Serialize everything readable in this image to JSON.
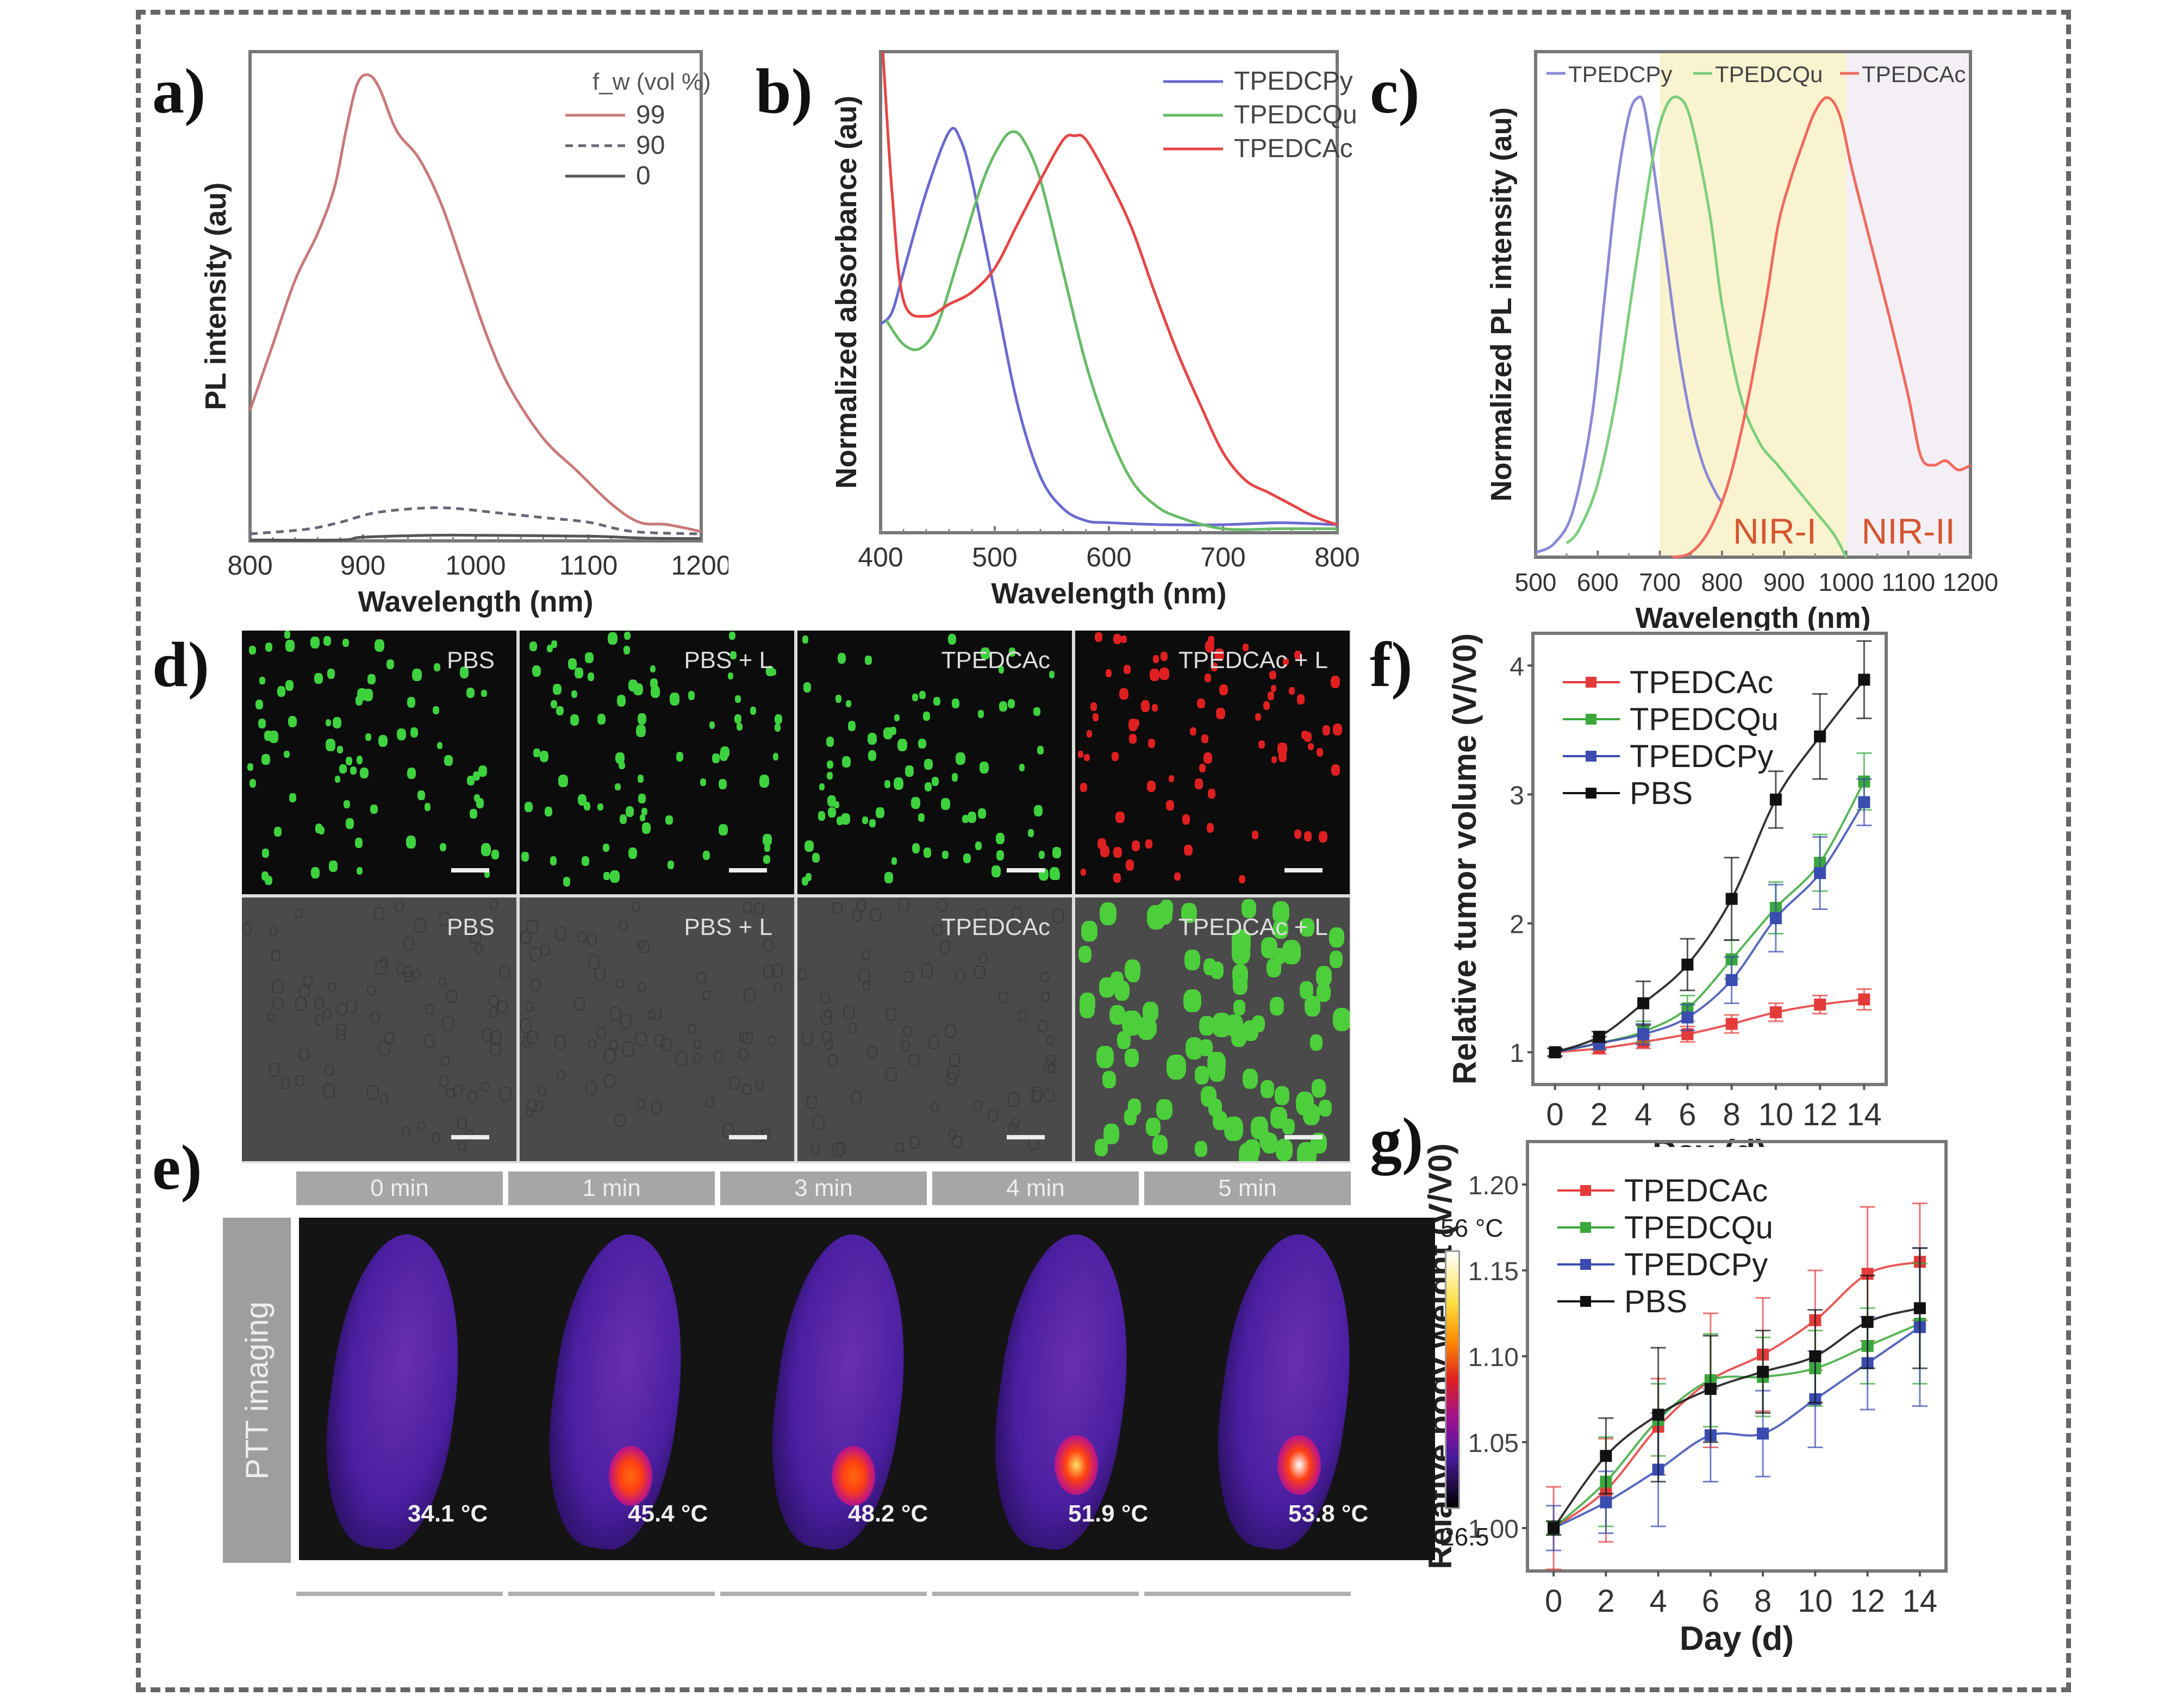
{
  "panels": {
    "a": {
      "label": "a)"
    },
    "b": {
      "label": "b)"
    },
    "c": {
      "label": "c)"
    },
    "d": {
      "label": "d)"
    },
    "e": {
      "label": "e)"
    },
    "f": {
      "label": "f)"
    },
    "g": {
      "label": "g)"
    }
  },
  "chart_data": [
    {
      "id": "a",
      "type": "line",
      "title": "",
      "xlabel": "Wavelength (nm)",
      "ylabel": "PL intensity (au)",
      "xlim": [
        800,
        1200
      ],
      "ylim": [
        0,
        1.05
      ],
      "xticks": [
        800,
        900,
        1000,
        1100,
        1200
      ],
      "legend_title": "f_w (vol %)",
      "legend_position": "top-right",
      "series": [
        {
          "name": "99",
          "color": "#c87878",
          "dash": "solid",
          "x": [
            800,
            820,
            840,
            860,
            875,
            885,
            895,
            905,
            915,
            930,
            950,
            970,
            990,
            1010,
            1030,
            1060,
            1090,
            1120,
            1145,
            1170,
            1200
          ],
          "y": [
            0.28,
            0.42,
            0.56,
            0.66,
            0.76,
            0.88,
            0.98,
            1.0,
            0.97,
            0.88,
            0.82,
            0.72,
            0.58,
            0.44,
            0.33,
            0.22,
            0.15,
            0.08,
            0.04,
            0.035,
            0.02
          ]
        },
        {
          "name": "90",
          "color": "#666677",
          "dash": "dashed",
          "x": [
            800,
            850,
            880,
            910,
            950,
            980,
            1020,
            1060,
            1100,
            1140,
            1200
          ],
          "y": [
            0.015,
            0.025,
            0.04,
            0.06,
            0.07,
            0.07,
            0.06,
            0.05,
            0.04,
            0.02,
            0.015
          ]
        },
        {
          "name": "0",
          "color": "#555555",
          "dash": "solid",
          "x": [
            800,
            880,
            900,
            960,
            1000,
            1100,
            1150,
            1200
          ],
          "y": [
            0.002,
            0.002,
            0.008,
            0.012,
            0.012,
            0.01,
            0.006,
            0.005
          ]
        }
      ]
    },
    {
      "id": "b",
      "type": "line",
      "xlabel": "Wavelength (nm)",
      "ylabel": "Normalized absorbance (au)",
      "xlim": [
        400,
        800
      ],
      "ylim": [
        0,
        1.2
      ],
      "xticks": [
        400,
        500,
        600,
        700,
        800
      ],
      "legend_position": "top-right",
      "series": [
        {
          "name": "TPEDCPy",
          "color": "#6a6ad0",
          "x": [
            400,
            410,
            420,
            440,
            460,
            470,
            480,
            500,
            520,
            540,
            560,
            580,
            600,
            650,
            700,
            750,
            800
          ],
          "y": [
            0.52,
            0.55,
            0.65,
            0.85,
            1.0,
            0.98,
            0.88,
            0.6,
            0.32,
            0.14,
            0.06,
            0.03,
            0.025,
            0.02,
            0.02,
            0.025,
            0.02
          ]
        },
        {
          "name": "TPEDCQu",
          "color": "#66bb66",
          "x": [
            405,
            420,
            435,
            450,
            470,
            490,
            505,
            515,
            525,
            540,
            560,
            580,
            600,
            620,
            640,
            660,
            700,
            750,
            800
          ],
          "y": [
            0.53,
            0.47,
            0.46,
            0.52,
            0.7,
            0.88,
            0.97,
            1.0,
            0.98,
            0.88,
            0.65,
            0.42,
            0.25,
            0.13,
            0.07,
            0.04,
            0.01,
            0.01,
            0.01
          ]
        },
        {
          "name": "TPEDCAc",
          "color": "#e64545",
          "x": [
            402,
            410,
            420,
            440,
            460,
            480,
            500,
            520,
            540,
            560,
            570,
            580,
            600,
            620,
            640,
            660,
            680,
            700,
            720,
            740,
            760,
            780,
            800
          ],
          "y": [
            1.2,
            0.85,
            0.58,
            0.54,
            0.57,
            0.6,
            0.66,
            0.77,
            0.88,
            0.98,
            0.99,
            0.98,
            0.88,
            0.76,
            0.6,
            0.45,
            0.32,
            0.2,
            0.13,
            0.1,
            0.07,
            0.04,
            0.02
          ]
        }
      ]
    },
    {
      "id": "c",
      "type": "line",
      "xlabel": "Wavelength (nm)",
      "ylabel": "Normalized PL intensity (au)",
      "xlim": [
        500,
        1200
      ],
      "ylim": [
        0,
        1.1
      ],
      "xticks": [
        500,
        600,
        700,
        800,
        900,
        1000,
        1100,
        1200
      ],
      "legend_position": "top",
      "regions": [
        {
          "name": "NIR-I",
          "from": 700,
          "to": 1000,
          "color": "#faf3cf",
          "label_color": "#d4552e"
        },
        {
          "name": "NIR-II",
          "from": 1000,
          "to": 1200,
          "color": "#f3eff5",
          "label_color": "#d4552e"
        }
      ],
      "series": [
        {
          "name": "TPEDCPy",
          "color": "#8a8ad6",
          "x": [
            500,
            530,
            560,
            590,
            610,
            630,
            650,
            665,
            675,
            690,
            710,
            730,
            750,
            770,
            790,
            800
          ],
          "y": [
            0.01,
            0.03,
            0.1,
            0.3,
            0.55,
            0.8,
            0.96,
            1.0,
            0.98,
            0.85,
            0.65,
            0.45,
            0.3,
            0.2,
            0.14,
            0.12
          ]
        },
        {
          "name": "TPEDCQu",
          "color": "#7ccf7c",
          "x": [
            550,
            570,
            600,
            630,
            660,
            690,
            710,
            730,
            750,
            780,
            800,
            830,
            860,
            890,
            920,
            950,
            980,
            1000
          ],
          "y": [
            0.03,
            0.06,
            0.16,
            0.35,
            0.62,
            0.88,
            0.98,
            1.0,
            0.95,
            0.75,
            0.55,
            0.35,
            0.25,
            0.2,
            0.15,
            0.1,
            0.05,
            0.0
          ]
        },
        {
          "name": "TPEDCAc",
          "color": "#ef6a5e",
          "x": [
            720,
            750,
            780,
            810,
            840,
            870,
            890,
            910,
            930,
            950,
            970,
            990,
            1010,
            1040,
            1070,
            1100,
            1120,
            1140,
            1160,
            1180,
            1200
          ],
          "y": [
            0.0,
            0.01,
            0.06,
            0.16,
            0.33,
            0.55,
            0.72,
            0.82,
            0.9,
            0.97,
            1.0,
            0.96,
            0.84,
            0.68,
            0.52,
            0.35,
            0.22,
            0.2,
            0.21,
            0.19,
            0.2
          ]
        }
      ]
    },
    {
      "id": "f",
      "type": "line",
      "xlabel": "Day (d)",
      "ylabel": "Relative tumor volume (V/V0)",
      "xlim": [
        -1,
        15
      ],
      "ylim": [
        0.75,
        4.25
      ],
      "xticks": [
        0,
        2,
        4,
        6,
        8,
        10,
        12,
        14
      ],
      "yticks": [
        1,
        2,
        3,
        4
      ],
      "legend_position": "top-left",
      "x": [
        0,
        2,
        4,
        6,
        8,
        10,
        12,
        14
      ],
      "series": [
        {
          "name": "TPEDCAc",
          "color": "#e53a3a",
          "values": [
            1.0,
            1.03,
            1.08,
            1.14,
            1.22,
            1.31,
            1.37,
            1.41
          ],
          "err": [
            0.03,
            0.04,
            0.05,
            0.06,
            0.07,
            0.07,
            0.07,
            0.08
          ]
        },
        {
          "name": "TPEDCQu",
          "color": "#3aa83a",
          "values": [
            1.0,
            1.07,
            1.16,
            1.34,
            1.72,
            2.12,
            2.47,
            3.1
          ],
          "err": [
            0.03,
            0.05,
            0.08,
            0.1,
            0.15,
            0.2,
            0.22,
            0.22
          ]
        },
        {
          "name": "TPEDCPy",
          "color": "#3a4cb0",
          "values": [
            1.0,
            1.07,
            1.14,
            1.27,
            1.56,
            2.04,
            2.39,
            2.94
          ],
          "err": [
            0.03,
            0.05,
            0.08,
            0.1,
            0.18,
            0.26,
            0.28,
            0.18
          ]
        },
        {
          "name": "PBS",
          "color": "#111111",
          "values": [
            1.0,
            1.12,
            1.38,
            1.68,
            2.19,
            2.96,
            3.45,
            3.89
          ],
          "err": [
            0.03,
            0.04,
            0.17,
            0.2,
            0.32,
            0.22,
            0.33,
            0.3
          ]
        }
      ]
    },
    {
      "id": "g",
      "type": "line",
      "xlabel": "Day (d)",
      "ylabel": "Relative body weight (V/V0)",
      "xlim": [
        -1,
        15
      ],
      "ylim": [
        0.975,
        1.225
      ],
      "xticks": [
        0,
        2,
        4,
        6,
        8,
        10,
        12,
        14
      ],
      "yticks": [
        1.0,
        1.05,
        1.1,
        1.15,
        1.2
      ],
      "ytick_labels": [
        "1.00",
        "1.05",
        "1.10",
        "1.15",
        "1.20"
      ],
      "legend_position": "top-left",
      "x": [
        0,
        2,
        4,
        6,
        8,
        10,
        12,
        14
      ],
      "series": [
        {
          "name": "TPEDCAc",
          "color": "#e53a3a",
          "values": [
            1.0,
            1.022,
            1.059,
            1.086,
            1.101,
            1.121,
            1.148,
            1.155
          ],
          "err": [
            0.024,
            0.03,
            0.028,
            0.039,
            0.033,
            0.029,
            0.039,
            0.034
          ]
        },
        {
          "name": "TPEDCQu",
          "color": "#3aa83a",
          "values": [
            1.0,
            1.027,
            1.063,
            1.086,
            1.088,
            1.093,
            1.106,
            1.119
          ],
          "err": [
            0.004,
            0.026,
            0.021,
            0.027,
            0.023,
            0.022,
            0.022,
            0.035
          ]
        },
        {
          "name": "TPEDCPy",
          "color": "#3a4cb0",
          "values": [
            1.0,
            1.015,
            1.034,
            1.054,
            1.055,
            1.075,
            1.096,
            1.117
          ],
          "err": [
            0.013,
            0.018,
            0.033,
            0.027,
            0.025,
            0.028,
            0.027,
            0.046
          ]
        },
        {
          "name": "PBS",
          "color": "#111111",
          "values": [
            1.0,
            1.042,
            1.066,
            1.081,
            1.091,
            1.1,
            1.12,
            1.128
          ],
          "err": [
            0.004,
            0.022,
            0.039,
            0.031,
            0.024,
            0.027,
            0.027,
            0.035
          ]
        }
      ]
    }
  ],
  "panel_d": {
    "top_row": [
      {
        "label": "PBS",
        "channel": "green"
      },
      {
        "label": "PBS + L",
        "channel": "green"
      },
      {
        "label": "TPEDCAc",
        "channel": "green"
      },
      {
        "label": "TPEDCAc + L",
        "channel": "red"
      }
    ],
    "bottom_row": [
      {
        "label": "PBS",
        "channel": "brightfield"
      },
      {
        "label": "PBS + L",
        "channel": "brightfield"
      },
      {
        "label": "TPEDCAc",
        "channel": "brightfield"
      },
      {
        "label": "TPEDCAc + L",
        "channel": "green-overlay"
      }
    ]
  },
  "panel_e": {
    "side_label": "PTT imaging",
    "time_points": [
      "0 min",
      "1 min",
      "3 min",
      "4 min",
      "5 min"
    ],
    "temperatures": [
      "34.1 °C",
      "45.4 °C",
      "48.2 °C",
      "51.9 °C",
      "53.8 °C"
    ],
    "hotspot_intensity": [
      0.0,
      0.55,
      0.65,
      0.85,
      0.95
    ],
    "colorbar_max": "56 °C",
    "colorbar_min": "26.5"
  }
}
